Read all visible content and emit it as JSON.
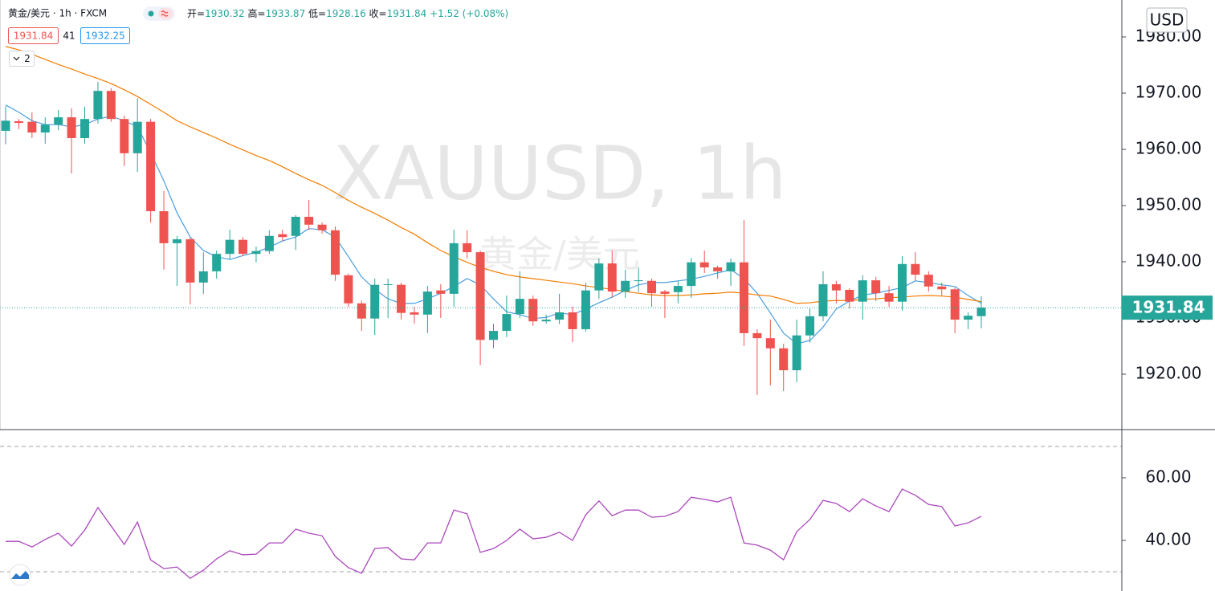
{
  "chart_data": [
    {
      "type": "candlestick",
      "title": "黄金/美元 · 1h · FXCM",
      "legend_ohlc": [
        {
          "label": "开=",
          "value": "1930.32"
        },
        {
          "label": "高=",
          "value": "1933.87"
        },
        {
          "label": "低=",
          "value": "1928.16"
        },
        {
          "label": "收=",
          "value": "1931.84"
        }
      ],
      "change": "+1.52 (+0.08%)",
      "badges": [
        "1931.84",
        "41",
        "1932.25"
      ],
      "indicator_count": "2",
      "currency": "USD",
      "watermark": "XAUUSD, 1h",
      "watermark_sub": "黄金/美元",
      "up_color": "#26a69a",
      "down_color": "#ef5350",
      "candles": [
        [
          1963.3,
          1967.7,
          1960.9,
          1965.1
        ],
        [
          1965.0,
          1965.4,
          1963.6,
          1964.7
        ],
        [
          1964.9,
          1966.6,
          1962.0,
          1963.0
        ],
        [
          1963.0,
          1965.7,
          1961.0,
          1964.4
        ],
        [
          1964.4,
          1967.0,
          1963.4,
          1965.7
        ],
        [
          1965.7,
          1967.3,
          1955.7,
          1962.0
        ],
        [
          1962.0,
          1967.6,
          1961.0,
          1965.4
        ],
        [
          1965.4,
          1972.0,
          1964.6,
          1970.4
        ],
        [
          1970.4,
          1970.9,
          1964.9,
          1965.4
        ],
        [
          1965.4,
          1966.0,
          1957.0,
          1959.3
        ],
        [
          1959.3,
          1969.1,
          1956.0,
          1964.9
        ],
        [
          1964.9,
          1965.4,
          1947.0,
          1949.0
        ],
        [
          1949.0,
          1952.6,
          1938.6,
          1943.3
        ],
        [
          1943.3,
          1944.6,
          1935.7,
          1944.0
        ],
        [
          1944.0,
          1944.3,
          1932.4,
          1936.3
        ],
        [
          1936.3,
          1941.7,
          1934.3,
          1938.3
        ],
        [
          1938.3,
          1942.0,
          1937.0,
          1941.4
        ],
        [
          1941.4,
          1945.7,
          1940.4,
          1943.9
        ],
        [
          1943.9,
          1944.4,
          1941.0,
          1941.4
        ],
        [
          1941.4,
          1942.7,
          1939.9,
          1941.9
        ],
        [
          1941.9,
          1945.6,
          1941.4,
          1944.6
        ],
        [
          1944.9,
          1945.7,
          1943.6,
          1944.4
        ],
        [
          1944.6,
          1948.3,
          1942.1,
          1948.0
        ],
        [
          1948.0,
          1951.0,
          1945.7,
          1946.6
        ],
        [
          1946.6,
          1947.0,
          1945.0,
          1945.6
        ],
        [
          1945.6,
          1946.3,
          1936.6,
          1937.7
        ],
        [
          1937.6,
          1937.9,
          1932.0,
          1932.6
        ],
        [
          1932.6,
          1933.1,
          1927.7,
          1929.9
        ],
        [
          1929.9,
          1937.0,
          1927.0,
          1935.9
        ],
        [
          1935.9,
          1937.0,
          1930.0,
          1936.0
        ],
        [
          1935.9,
          1936.3,
          1929.7,
          1930.9
        ],
        [
          1931.0,
          1932.0,
          1929.0,
          1930.6
        ],
        [
          1930.6,
          1935.7,
          1927.3,
          1934.7
        ],
        [
          1934.9,
          1936.0,
          1930.0,
          1934.3
        ],
        [
          1934.3,
          1945.7,
          1932.0,
          1943.3
        ],
        [
          1943.3,
          1945.6,
          1940.6,
          1941.7
        ],
        [
          1941.7,
          1942.0,
          1921.6,
          1926.1
        ],
        [
          1926.1,
          1929.0,
          1924.6,
          1927.7
        ],
        [
          1927.7,
          1934.0,
          1926.6,
          1930.7
        ],
        [
          1930.7,
          1938.3,
          1930.0,
          1933.4
        ],
        [
          1933.4,
          1934.0,
          1928.6,
          1929.4
        ],
        [
          1929.4,
          1930.6,
          1929.0,
          1929.7
        ],
        [
          1929.7,
          1934.3,
          1928.9,
          1931.0
        ],
        [
          1931.0,
          1932.0,
          1925.7,
          1928.0
        ],
        [
          1928.0,
          1936.3,
          1927.6,
          1934.9
        ],
        [
          1934.9,
          1940.6,
          1933.4,
          1939.7
        ],
        [
          1939.7,
          1942.0,
          1933.6,
          1934.7
        ],
        [
          1934.7,
          1938.6,
          1933.6,
          1936.6
        ],
        [
          1936.6,
          1939.0,
          1934.6,
          1936.7
        ],
        [
          1936.6,
          1937.0,
          1932.0,
          1934.4
        ],
        [
          1934.7,
          1935.0,
          1930.0,
          1934.3
        ],
        [
          1934.6,
          1936.6,
          1932.6,
          1935.7
        ],
        [
          1935.7,
          1940.7,
          1933.6,
          1939.9
        ],
        [
          1939.9,
          1942.0,
          1938.0,
          1939.0
        ],
        [
          1939.0,
          1939.3,
          1937.0,
          1938.3
        ],
        [
          1938.3,
          1940.6,
          1935.7,
          1939.9
        ],
        [
          1939.9,
          1947.4,
          1925.0,
          1927.3
        ],
        [
          1927.3,
          1928.0,
          1916.3,
          1926.4
        ],
        [
          1926.4,
          1929.7,
          1918.0,
          1924.6
        ],
        [
          1924.6,
          1925.4,
          1917.0,
          1920.7
        ],
        [
          1920.7,
          1929.7,
          1918.6,
          1926.9
        ],
        [
          1926.9,
          1931.7,
          1925.6,
          1930.3
        ],
        [
          1930.3,
          1938.3,
          1929.4,
          1936.0
        ],
        [
          1936.0,
          1936.6,
          1932.6,
          1934.9
        ],
        [
          1935.0,
          1935.3,
          1931.7,
          1932.9
        ],
        [
          1932.9,
          1937.6,
          1929.7,
          1936.7
        ],
        [
          1936.7,
          1937.3,
          1933.0,
          1934.4
        ],
        [
          1934.4,
          1935.7,
          1932.0,
          1932.9
        ],
        [
          1932.9,
          1941.0,
          1931.3,
          1939.6
        ],
        [
          1939.6,
          1941.7,
          1936.7,
          1937.7
        ],
        [
          1937.7,
          1938.3,
          1934.7,
          1935.6
        ],
        [
          1935.6,
          1936.3,
          1934.0,
          1935.1
        ],
        [
          1935.1,
          1935.4,
          1927.3,
          1929.7
        ],
        [
          1929.7,
          1931.0,
          1928.0,
          1930.4
        ],
        [
          1930.32,
          1933.87,
          1928.16,
          1931.84
        ]
      ],
      "overlays": [
        {
          "color": "#4a9ee0",
          "values": [
            1967.9,
            1966.6,
            1965.1,
            1964.4,
            1964.4,
            1964.0,
            1964.4,
            1965.4,
            1965.9,
            1965.1,
            1964.0,
            1959.4,
            1954.4,
            1948.7,
            1944.4,
            1942.0,
            1940.9,
            1940.4,
            1941.1,
            1941.7,
            1942.6,
            1943.7,
            1944.4,
            1945.9,
            1945.7,
            1944.4,
            1940.9,
            1937.3,
            1935.1,
            1933.4,
            1932.6,
            1932.6,
            1933.4,
            1934.4,
            1935.6,
            1937.0,
            1935.9,
            1933.4,
            1931.1,
            1930.6,
            1929.9,
            1930.1,
            1930.9,
            1930.6,
            1931.6,
            1932.7,
            1933.7,
            1934.9,
            1935.9,
            1936.3,
            1936.3,
            1936.6,
            1936.9,
            1937.4,
            1938.0,
            1938.6,
            1937.0,
            1934.4,
            1930.9,
            1927.3,
            1925.4,
            1926.0,
            1928.4,
            1931.6,
            1933.0,
            1934.1,
            1934.4,
            1934.9,
            1935.4,
            1936.6,
            1936.3,
            1935.9,
            1935.6,
            1934.0,
            1932.6
          ]
        },
        {
          "color": "#f57c00",
          "values": [
            1978.3,
            1977.7,
            1976.9,
            1976.0,
            1975.1,
            1974.3,
            1973.4,
            1972.6,
            1971.7,
            1970.6,
            1969.4,
            1968.0,
            1966.6,
            1965.1,
            1964.0,
            1963.0,
            1962.0,
            1960.9,
            1959.9,
            1958.9,
            1958.0,
            1956.9,
            1955.7,
            1954.6,
            1953.6,
            1952.3,
            1950.9,
            1949.7,
            1948.6,
            1947.4,
            1946.1,
            1944.9,
            1943.4,
            1942.0,
            1940.9,
            1939.9,
            1939.0,
            1938.3,
            1937.7,
            1937.3,
            1937.0,
            1936.7,
            1936.4,
            1936.1,
            1935.7,
            1935.4,
            1935.1,
            1934.7,
            1934.4,
            1934.1,
            1934.0,
            1934.0,
            1934.1,
            1934.3,
            1934.4,
            1934.6,
            1934.4,
            1934.1,
            1933.9,
            1933.3,
            1932.6,
            1932.7,
            1933.0,
            1933.1,
            1933.1,
            1933.3,
            1933.4,
            1933.6,
            1933.7,
            1933.9,
            1934.0,
            1933.9,
            1933.7,
            1933.3,
            1932.9
          ]
        }
      ],
      "last_price": 1931.84,
      "ylim": [
        1910.14,
        1986.57
      ],
      "yticks": [
        {
          "value": 1920,
          "label": "1920.00"
        },
        {
          "value": 1930,
          "label": "1930.00"
        },
        {
          "value": 1940,
          "label": "1940.00"
        },
        {
          "value": 1950,
          "label": "1950.00"
        },
        {
          "value": 1960,
          "label": "1960.00"
        },
        {
          "value": 1970,
          "label": "1970.00"
        },
        {
          "value": 1980,
          "label": "1980.00"
        }
      ]
    },
    {
      "type": "line",
      "color": "#ab47bc",
      "values": [
        39.7,
        39.7,
        37.9,
        40.3,
        42.3,
        38.2,
        43.3,
        50.5,
        44.6,
        38.7,
        45.9,
        33.8,
        31.0,
        31.5,
        27.9,
        30.5,
        34.1,
        36.7,
        35.4,
        35.6,
        39.2,
        39.2,
        43.6,
        42.3,
        41.5,
        34.9,
        31.3,
        29.5,
        37.4,
        37.7,
        34.1,
        33.8,
        39.2,
        39.2,
        49.7,
        48.5,
        36.2,
        37.4,
        40.0,
        43.6,
        40.5,
        41.0,
        42.6,
        40.0,
        48.2,
        52.6,
        47.9,
        49.7,
        49.7,
        47.4,
        47.7,
        49.2,
        53.8,
        53.1,
        52.3,
        53.8,
        39.2,
        38.5,
        36.9,
        33.8,
        42.8,
        46.7,
        52.8,
        51.8,
        49.2,
        53.3,
        51.0,
        49.2,
        56.4,
        54.4,
        51.5,
        50.8,
        44.6,
        45.6,
        47.7
      ],
      "levels": [
        70,
        30
      ],
      "ylim": [
        23.85,
        75.38
      ],
      "yticks": [
        {
          "value": 40,
          "label": "40.00"
        },
        {
          "value": 60,
          "label": "60.00"
        }
      ]
    }
  ]
}
